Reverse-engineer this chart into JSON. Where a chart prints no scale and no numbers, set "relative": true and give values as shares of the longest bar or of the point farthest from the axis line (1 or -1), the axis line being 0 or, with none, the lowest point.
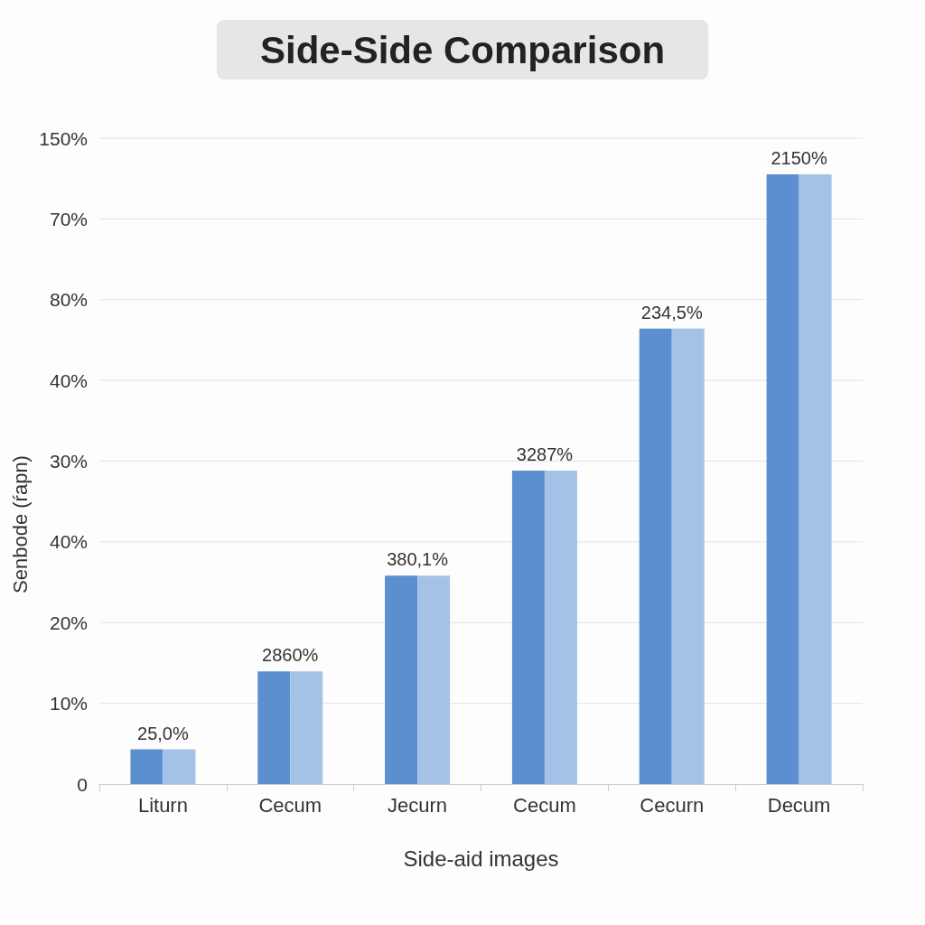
{
  "chart_data": {
    "type": "bar",
    "title": "Side-Side Comparison",
    "xlabel": "Side-aid images",
    "ylabel": "Senbode (ŕapn)",
    "categories": [
      "Liturn",
      "Cecum",
      "Jecurn",
      "Cecum",
      "Cecurn",
      "Decum"
    ],
    "relative": true,
    "series": [
      {
        "color": "#5b8fd0",
        "values": [
          0.057,
          0.185,
          0.342,
          0.514,
          0.747,
          1
        ]
      },
      {
        "color": "#a4c2e6",
        "values": [
          0.057,
          0.185,
          0.342,
          0.514,
          0.747,
          1
        ]
      }
    ],
    "annotations": [
      "0",
      "10%",
      "20%",
      "40%",
      "30%",
      "40%",
      "80%",
      "70%",
      "150%",
      {
        "text": "25,0%",
        "x": "Liturn",
        "y": 0.057
      },
      {
        "text": "2860%",
        "x": "Cecum",
        "y": 0.185
      },
      {
        "text": "380,1%",
        "x": "Jecurn",
        "y": 0.342
      },
      {
        "text": "3287%",
        "y": 0.514
      },
      {
        "text": "234,5%",
        "x": "Cecurn",
        "y": 0.747
      },
      {
        "text": "2150%",
        "x": "Decum",
        "y": 1
      }
    ],
    "grid": "y"
  }
}
